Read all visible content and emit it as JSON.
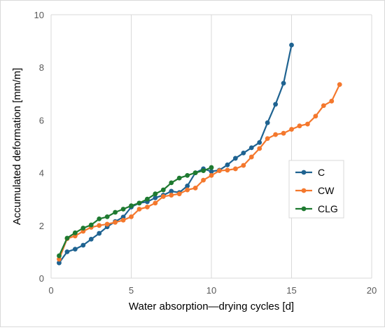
{
  "chart_data": {
    "type": "line",
    "title": "",
    "xlabel": "Water absorption—drying cycles [d]",
    "ylabel": "Accumulated deformation [mm/m]",
    "xlim": [
      0,
      20
    ],
    "ylim": [
      0,
      10
    ],
    "x_ticks": [
      "0",
      "5",
      "10",
      "15",
      "20"
    ],
    "y_ticks": [
      "0",
      "2",
      "4",
      "6",
      "8",
      "10"
    ],
    "grid": "vertical",
    "legend_position": "right",
    "series": [
      {
        "name": "C",
        "color": "#1f6391",
        "points": [
          [
            0.5,
            0.58
          ],
          [
            1,
            1.0
          ],
          [
            1.5,
            1.1
          ],
          [
            2,
            1.25
          ],
          [
            2.5,
            1.48
          ],
          [
            3,
            1.7
          ],
          [
            3.5,
            1.95
          ],
          [
            4,
            2.15
          ],
          [
            4.5,
            2.32
          ],
          [
            5,
            2.7
          ],
          [
            5.5,
            2.85
          ],
          [
            6,
            2.9
          ],
          [
            6.5,
            3.05
          ],
          [
            7,
            3.15
          ],
          [
            7.5,
            3.3
          ],
          [
            8,
            3.25
          ],
          [
            8.5,
            3.5
          ],
          [
            9,
            4.0
          ],
          [
            9.5,
            4.15
          ],
          [
            10,
            4.05
          ],
          [
            10.5,
            4.1
          ],
          [
            11,
            4.3
          ],
          [
            11.5,
            4.55
          ],
          [
            12,
            4.75
          ],
          [
            12.5,
            4.95
          ],
          [
            13,
            5.15
          ],
          [
            13.5,
            5.9
          ],
          [
            14,
            6.6
          ],
          [
            14.5,
            7.4
          ],
          [
            15,
            8.85
          ]
        ]
      },
      {
        "name": "CW",
        "color": "#f4782d",
        "points": [
          [
            0.5,
            0.72
          ],
          [
            1,
            1.5
          ],
          [
            1.5,
            1.6
          ],
          [
            2,
            1.78
          ],
          [
            2.5,
            1.93
          ],
          [
            3,
            2.0
          ],
          [
            3.5,
            2.05
          ],
          [
            4,
            2.12
          ],
          [
            4.5,
            2.2
          ],
          [
            5,
            2.33
          ],
          [
            5.5,
            2.62
          ],
          [
            6,
            2.7
          ],
          [
            6.5,
            2.85
          ],
          [
            7,
            3.1
          ],
          [
            7.5,
            3.15
          ],
          [
            8,
            3.2
          ],
          [
            8.5,
            3.35
          ],
          [
            9,
            3.42
          ],
          [
            9.5,
            3.72
          ],
          [
            10,
            3.9
          ],
          [
            10.5,
            4.08
          ],
          [
            11,
            4.1
          ],
          [
            11.5,
            4.15
          ],
          [
            12,
            4.28
          ],
          [
            12.5,
            4.6
          ],
          [
            13,
            4.92
          ],
          [
            13.5,
            5.3
          ],
          [
            14,
            5.45
          ],
          [
            14.5,
            5.5
          ],
          [
            15,
            5.65
          ],
          [
            15.5,
            5.78
          ],
          [
            16,
            5.85
          ],
          [
            16.5,
            6.15
          ],
          [
            17,
            6.55
          ],
          [
            17.5,
            6.72
          ],
          [
            18,
            7.35
          ]
        ]
      },
      {
        "name": "CLG",
        "color": "#1e7a30",
        "points": [
          [
            0.5,
            0.85
          ],
          [
            1,
            1.52
          ],
          [
            1.5,
            1.72
          ],
          [
            2,
            1.9
          ],
          [
            2.5,
            2.02
          ],
          [
            3,
            2.25
          ],
          [
            3.5,
            2.33
          ],
          [
            4,
            2.5
          ],
          [
            4.5,
            2.62
          ],
          [
            5,
            2.75
          ],
          [
            5.5,
            2.85
          ],
          [
            6,
            3.0
          ],
          [
            6.5,
            3.2
          ],
          [
            7,
            3.35
          ],
          [
            7.5,
            3.62
          ],
          [
            8,
            3.8
          ],
          [
            8.5,
            3.9
          ],
          [
            9,
            4.0
          ],
          [
            9.5,
            4.08
          ],
          [
            10,
            4.2
          ]
        ]
      }
    ]
  }
}
